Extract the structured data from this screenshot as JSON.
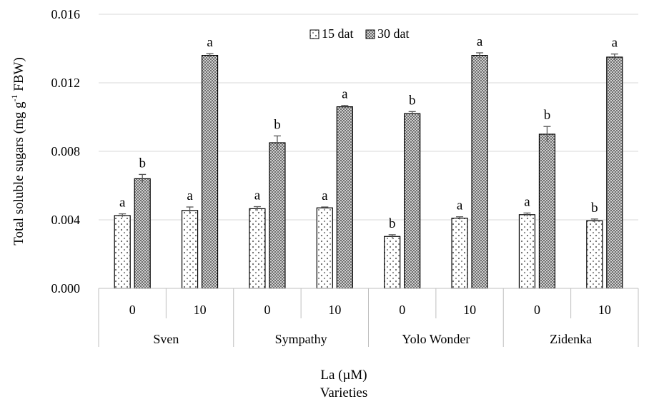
{
  "chart_data": {
    "type": "bar",
    "ylabel": "Total soluble sugars (mg g",
    "ylabel_sup": "-1",
    "ylabel_tail": " FBW)",
    "xlabel_line1": "La (µM)",
    "xlabel_line2": "Varieties",
    "ylim": [
      0,
      0.016
    ],
    "yticks": [
      "0.000",
      "0.004",
      "0.008",
      "0.012",
      "0.016"
    ],
    "ytick_values": [
      0,
      0.004,
      0.008,
      0.012,
      0.016
    ],
    "grid": true,
    "legend_position": "top-center",
    "groups": [
      "Sven",
      "Sympathy",
      "Yolo Wonder",
      "Zidenka"
    ],
    "categories": [
      "0",
      "10",
      "0",
      "10",
      "0",
      "10",
      "0",
      "10"
    ],
    "series": [
      {
        "name": "15 dat",
        "pattern": "dots",
        "values": [
          0.00425,
          0.00455,
          0.00465,
          0.0047,
          0.00303,
          0.0041,
          0.0043,
          0.00395
        ],
        "errors": [
          0.0001,
          0.0002,
          0.00012,
          5e-05,
          0.0001,
          8e-05,
          0.0001,
          0.0001
        ],
        "letters": [
          "a",
          "a",
          "a",
          "a",
          "b",
          "a",
          "a",
          "b"
        ]
      },
      {
        "name": "30 dat",
        "pattern": "checker",
        "values": [
          0.0064,
          0.0136,
          0.0085,
          0.0106,
          0.0102,
          0.0136,
          0.009,
          0.0135
        ],
        "errors": [
          0.00025,
          0.0001,
          0.0004,
          8e-05,
          0.00012,
          0.00015,
          0.00045,
          0.00018
        ],
        "letters": [
          "b",
          "a",
          "b",
          "a",
          "b",
          "a",
          "b",
          "a"
        ]
      }
    ]
  }
}
